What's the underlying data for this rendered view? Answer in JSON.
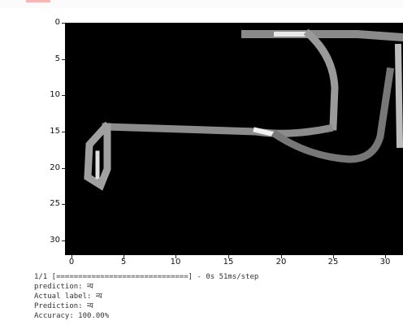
{
  "figure": {
    "y_ticks": [
      "0",
      "5",
      "10",
      "15",
      "20",
      "25",
      "30"
    ],
    "x_ticks": [
      "0",
      "5",
      "10",
      "15",
      "20",
      "25",
      "30"
    ],
    "colormap": "gray",
    "background_color": "#000000"
  },
  "output": {
    "progress_line": "1/1 [==============================] - 0s 51ms/step",
    "prediction_line": "prediction: न्य",
    "actual_label_line": "Actual label: न्य",
    "prediction_caps_line": "Prediction: न्य",
    "accuracy_line": "Accuracy: 100.00%"
  }
}
